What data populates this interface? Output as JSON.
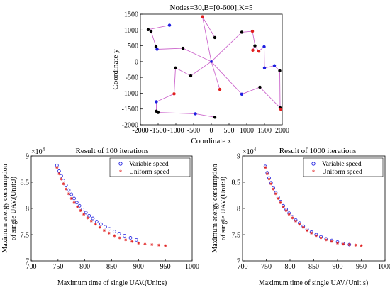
{
  "figure": {
    "top_plot": {
      "title": "Nodes=30,B=[0-600],K=5",
      "xlabel": "Coordinate x",
      "ylabel": "Coordinate y"
    },
    "left_plot": {
      "title": "Result of 100 iterations",
      "xlabel": "Maximum time of single UAV.(Unit:s)",
      "ylabel_line1": "Maximum energy consumption",
      "ylabel_line2": "of single UAV.(Unit:J)",
      "exponent": "×10",
      "exponent_power": "4",
      "legend_variable": "Variable speed",
      "legend_uniform": "Uniform speed"
    },
    "right_plot": {
      "title": "Result of 1000 iterations",
      "xlabel": "Maximum time of single UAV.(Unit:s)",
      "ylabel_line1": "Maximum energy consumption",
      "ylabel_line2": "of single UAV.(Unit:J)",
      "exponent": "×10",
      "exponent_power": "4",
      "legend_variable": "Variable speed",
      "legend_uniform": "Uniform speed"
    }
  },
  "chart_data": [
    {
      "type": "scatter",
      "subtype": "uav-route-network",
      "title": "Nodes=30,B=[0-600],K=5",
      "xlabel": "Coordinate x",
      "ylabel": "Coordinate y",
      "xlim": [
        -2000,
        2000
      ],
      "ylim": [
        -2000,
        1500
      ],
      "xticks": [
        -2000,
        -1500,
        -1000,
        -500,
        0,
        500,
        1000,
        1500,
        2000
      ],
      "yticks": [
        -2000,
        -1500,
        -1000,
        -500,
        0,
        500,
        1000,
        1500
      ],
      "depot": [
        0,
        0
      ],
      "colors": {
        "route": "#cc66cc",
        "black": "#000000",
        "blue": "#1f1fe0",
        "red": "#e01f1f",
        "depot": "#1f1fe0"
      },
      "routes": [
        [
          [
            0,
            0
          ],
          [
            -250,
            1420
          ],
          [
            100,
            760
          ]
        ],
        [
          [
            0,
            0
          ],
          [
            -800,
            420
          ],
          [
            -1530,
            390
          ],
          [
            -1560,
            470
          ],
          [
            -1700,
            960
          ],
          [
            -1780,
            1010
          ],
          [
            -1180,
            1150
          ]
        ],
        [
          [
            0,
            0
          ],
          [
            -580,
            -450
          ],
          [
            -1010,
            -200
          ],
          [
            -1050,
            -1020
          ],
          [
            -1550,
            -1270
          ],
          [
            -1550,
            -1570
          ],
          [
            -1500,
            -1610
          ],
          [
            -450,
            -1650
          ],
          [
            100,
            -1760
          ]
        ],
        [
          [
            0,
            0
          ],
          [
            860,
            -1030
          ],
          [
            1370,
            -810
          ],
          [
            1940,
            -1460
          ],
          [
            1960,
            -1510
          ],
          [
            1950,
            -1490
          ],
          [
            1940,
            -1460
          ],
          [
            1930,
            -290
          ],
          [
            1780,
            -130
          ],
          [
            1500,
            -200
          ],
          [
            1490,
            470
          ],
          [
            1340,
            330
          ],
          [
            1230,
            500
          ]
        ],
        [
          [
            0,
            0
          ],
          [
            240,
            -880
          ]
        ],
        [
          [
            0,
            0
          ],
          [
            860,
            930
          ],
          [
            1160,
            960
          ],
          [
            1230,
            530
          ],
          [
            1170,
            360
          ]
        ]
      ],
      "nodes": [
        {
          "x": -250,
          "y": 1420,
          "color": "red"
        },
        {
          "x": 100,
          "y": 760,
          "color": "black"
        },
        {
          "x": -800,
          "y": 420,
          "color": "black"
        },
        {
          "x": -1530,
          "y": 390,
          "color": "blue"
        },
        {
          "x": -1560,
          "y": 470,
          "color": "black"
        },
        {
          "x": -1700,
          "y": 960,
          "color": "black"
        },
        {
          "x": -1780,
          "y": 1010,
          "color": "black"
        },
        {
          "x": -1180,
          "y": 1150,
          "color": "blue"
        },
        {
          "x": -580,
          "y": -450,
          "color": "black"
        },
        {
          "x": -1010,
          "y": -200,
          "color": "black"
        },
        {
          "x": -1050,
          "y": -1020,
          "color": "red"
        },
        {
          "x": -1550,
          "y": -1270,
          "color": "blue"
        },
        {
          "x": -1550,
          "y": -1570,
          "color": "black"
        },
        {
          "x": -1500,
          "y": -1610,
          "color": "black"
        },
        {
          "x": -450,
          "y": -1650,
          "color": "blue"
        },
        {
          "x": 100,
          "y": -1760,
          "color": "black"
        },
        {
          "x": 240,
          "y": -880,
          "color": "red"
        },
        {
          "x": 860,
          "y": -1030,
          "color": "blue"
        },
        {
          "x": 1370,
          "y": -810,
          "color": "black"
        },
        {
          "x": 1940,
          "y": -1460,
          "color": "black"
        },
        {
          "x": 1960,
          "y": -1510,
          "color": "red"
        },
        {
          "x": 1930,
          "y": -290,
          "color": "black"
        },
        {
          "x": 1780,
          "y": -130,
          "color": "blue"
        },
        {
          "x": 1500,
          "y": -200,
          "color": "blue"
        },
        {
          "x": 1490,
          "y": 470,
          "color": "blue"
        },
        {
          "x": 1340,
          "y": 330,
          "color": "red"
        },
        {
          "x": 1230,
          "y": 500,
          "color": "black"
        },
        {
          "x": 860,
          "y": 930,
          "color": "black"
        },
        {
          "x": 1160,
          "y": 960,
          "color": "red"
        },
        {
          "x": 1170,
          "y": 360,
          "color": "red"
        }
      ]
    },
    {
      "type": "scatter",
      "title": "Result of 100 iterations",
      "xlabel": "Maximum time of single UAV.(Unit:s)",
      "ylabel": "Maximum energy consumption of single UAV.(Unit:J)",
      "y_multiplier": "×10^4",
      "xlim": [
        700,
        1000
      ],
      "ylim": [
        7,
        9
      ],
      "xticks": [
        700,
        750,
        800,
        850,
        900,
        950,
        1000
      ],
      "yticks": [
        7,
        7.5,
        8,
        8.5,
        9
      ],
      "legend_position": "top-right",
      "series": [
        {
          "name": "Variable speed",
          "marker": "circle",
          "color": "#1f1fe0",
          "x": [
            748,
            752,
            756,
            760,
            765,
            770,
            775,
            780,
            785,
            790,
            796,
            802,
            808,
            815,
            822,
            830,
            838,
            846,
            855,
            864,
            874,
            885,
            896
          ],
          "y": [
            8.82,
            8.71,
            8.62,
            8.53,
            8.44,
            8.35,
            8.27,
            8.19,
            8.11,
            8.05,
            7.98,
            7.92,
            7.86,
            7.81,
            7.75,
            7.7,
            7.65,
            7.61,
            7.56,
            7.52,
            7.48,
            7.44,
            7.4
          ]
        },
        {
          "name": "Uniform speed",
          "marker": "star",
          "color": "#e01f1f",
          "x": [
            748,
            752,
            756,
            760,
            765,
            770,
            775,
            780,
            786,
            792,
            798,
            805,
            812,
            820,
            828,
            836,
            845,
            855,
            865,
            876,
            888,
            900,
            912,
            925,
            938,
            950
          ],
          "y": [
            8.78,
            8.66,
            8.56,
            8.47,
            8.37,
            8.28,
            8.19,
            8.11,
            8.03,
            7.96,
            7.89,
            7.82,
            7.76,
            7.7,
            7.64,
            7.58,
            7.53,
            7.48,
            7.44,
            7.4,
            7.37,
            7.34,
            7.32,
            7.31,
            7.3,
            7.29
          ]
        }
      ]
    },
    {
      "type": "scatter",
      "title": "Result of 1000 iterations",
      "xlabel": "Maximum time of single UAV.(Unit:s)",
      "ylabel": "Maximum energy consumption of single UAV.(Unit:J)",
      "y_multiplier": "×10^4",
      "xlim": [
        700,
        1000
      ],
      "ylim": [
        7,
        9
      ],
      "xticks": [
        700,
        750,
        800,
        850,
        900,
        950,
        1000
      ],
      "yticks": [
        7,
        7.5,
        8,
        8.5,
        9
      ],
      "legend_position": "top-right",
      "series": [
        {
          "name": "Variable speed",
          "marker": "circle",
          "color": "#1f1fe0",
          "x": [
            748,
            752,
            756,
            760,
            765,
            770,
            775,
            780,
            786,
            792,
            798,
            805,
            812,
            820,
            828,
            836,
            845,
            855,
            865,
            876,
            888,
            900,
            912,
            925
          ],
          "y": [
            8.8,
            8.68,
            8.58,
            8.49,
            8.39,
            8.3,
            8.21,
            8.13,
            8.05,
            7.98,
            7.91,
            7.84,
            7.78,
            7.72,
            7.66,
            7.6,
            7.55,
            7.5,
            7.46,
            7.42,
            7.39,
            7.36,
            7.33,
            7.31
          ]
        },
        {
          "name": "Uniform speed",
          "marker": "star",
          "color": "#e01f1f",
          "x": [
            748,
            752,
            756,
            760,
            765,
            770,
            775,
            780,
            786,
            792,
            798,
            805,
            812,
            820,
            828,
            836,
            845,
            855,
            865,
            876,
            888,
            900,
            912,
            925,
            938,
            950
          ],
          "y": [
            8.78,
            8.66,
            8.56,
            8.47,
            8.37,
            8.28,
            8.19,
            8.11,
            8.03,
            7.96,
            7.89,
            7.82,
            7.76,
            7.7,
            7.64,
            7.58,
            7.53,
            7.48,
            7.44,
            7.4,
            7.37,
            7.34,
            7.32,
            7.31,
            7.3,
            7.29
          ]
        }
      ]
    }
  ]
}
